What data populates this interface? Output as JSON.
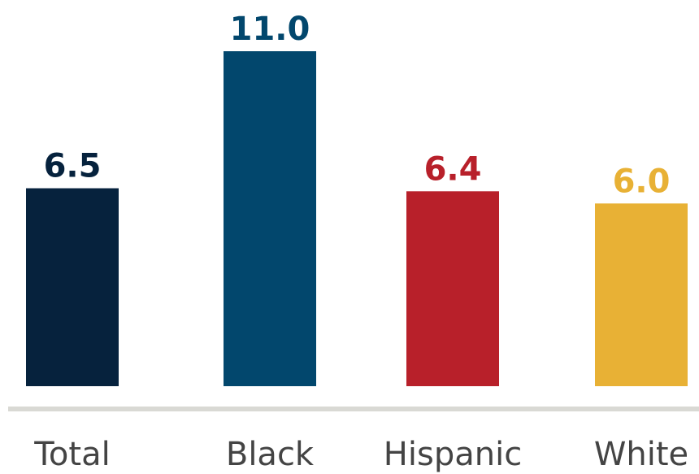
{
  "chart_data": {
    "type": "bar",
    "categories": [
      "Total",
      "Black",
      "Hispanic",
      "White"
    ],
    "values": [
      6.5,
      11.0,
      6.4,
      6.0
    ],
    "value_labels": [
      "6.5",
      "11.0",
      "6.4",
      "6.0"
    ],
    "colors": [
      "#06223d",
      "#02476d",
      "#b8202a",
      "#e8b135"
    ],
    "ylim": [
      0,
      11.0
    ],
    "grid": false,
    "legend": "none",
    "axis_color": "#d9d9d4",
    "category_label_color": "#444444"
  }
}
